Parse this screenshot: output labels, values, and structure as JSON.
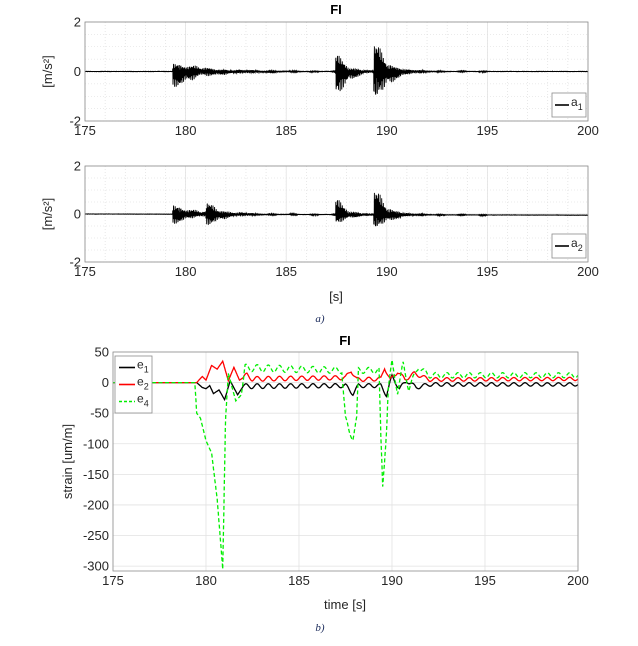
{
  "chart_data": [
    {
      "type": "line",
      "panel": "a",
      "title": "FI",
      "xlabel": "",
      "ylabel": "[m/s²]",
      "xlim": [
        175,
        200
      ],
      "ylim": [
        -2,
        2
      ],
      "xticks": [
        "175",
        "180",
        "185",
        "190",
        "195",
        "200"
      ],
      "yticks": [
        "-2",
        "0",
        "2"
      ],
      "grid": "major+minor",
      "legend_position": "bottom-right",
      "series": [
        {
          "name_base": "a",
          "name_sub": "1",
          "color": "#000000",
          "baseline_end": 0.0,
          "bursts": [
            {
              "t0": 179.35,
              "pos": 0.5,
              "neg": -0.75,
              "tau": 1.4
            },
            {
              "t0": 187.45,
              "pos": 0.9,
              "neg": -1.6,
              "tau": 0.5
            },
            {
              "t0": 189.35,
              "pos": 1.4,
              "neg": -2.0,
              "tau": 0.6
            }
          ]
        },
        {
          "name_base": "a",
          "name_sub": "2",
          "color": "#000000",
          "baseline_end": -0.05,
          "bursts": [
            {
              "t0": 179.35,
              "pos": 0.6,
              "neg": -0.5,
              "tau": 0.9
            },
            {
              "t0": 181.0,
              "pos": 0.55,
              "neg": -0.6,
              "tau": 0.7
            },
            {
              "t0": 187.45,
              "pos": 0.85,
              "neg": -0.6,
              "tau": 0.5
            },
            {
              "t0": 189.35,
              "pos": 1.25,
              "neg": -1.0,
              "tau": 0.6
            }
          ]
        }
      ],
      "shared_xlabel": "[s]",
      "caption": "a)"
    },
    {
      "type": "line",
      "panel": "b",
      "title": "FI",
      "xlabel": "time [s]",
      "ylabel": "strain [um/m]",
      "xlim": [
        175,
        200
      ],
      "ylim": [
        -308,
        50
      ],
      "xticks": [
        "175",
        "180",
        "185",
        "190",
        "195",
        "200"
      ],
      "yticks": [
        "50",
        "0",
        "-50",
        "-100",
        "-150",
        "-200",
        "-250",
        "-300"
      ],
      "grid": "major",
      "legend_position": "top-left",
      "caption": "b)",
      "series": [
        {
          "name_base": "e",
          "name_sub": "1",
          "color": "#000000",
          "dash": false,
          "osc": {
            "start": 182,
            "period": 0.6,
            "amp": 4
          },
          "points": [
            [
              175,
              0
            ],
            [
              179.5,
              0
            ],
            [
              179.8,
              -8
            ],
            [
              180,
              -10
            ],
            [
              180.2,
              -5
            ],
            [
              180.4,
              -18
            ],
            [
              180.7,
              -12
            ],
            [
              181,
              -28
            ],
            [
              181.3,
              3
            ],
            [
              181.7,
              -20
            ],
            [
              182,
              -6
            ],
            [
              187.5,
              -5
            ],
            [
              187.9,
              -18
            ],
            [
              188.2,
              -5
            ],
            [
              189.4,
              -5
            ],
            [
              189.7,
              -20
            ],
            [
              190,
              10
            ],
            [
              190.4,
              -10
            ],
            [
              190.8,
              3
            ],
            [
              191.3,
              -8
            ],
            [
              192,
              -3
            ],
            [
              200,
              -3
            ]
          ]
        },
        {
          "name_base": "e",
          "name_sub": "2",
          "color": "#ff0000",
          "dash": false,
          "osc": {
            "start": 182,
            "period": 0.6,
            "amp": 4
          },
          "points": [
            [
              175,
              0
            ],
            [
              179.5,
              0
            ],
            [
              179.8,
              10
            ],
            [
              180,
              4
            ],
            [
              180.3,
              28
            ],
            [
              180.6,
              22
            ],
            [
              180.9,
              35
            ],
            [
              181.2,
              3
            ],
            [
              181.5,
              25
            ],
            [
              181.8,
              4
            ],
            [
              182.2,
              12
            ],
            [
              182.5,
              6
            ],
            [
              187.5,
              8
            ],
            [
              187.8,
              20
            ],
            [
              188.1,
              5
            ],
            [
              189.4,
              6
            ],
            [
              189.6,
              25
            ],
            [
              189.9,
              4
            ],
            [
              190.3,
              18
            ],
            [
              190.7,
              5
            ],
            [
              191.2,
              15
            ],
            [
              192,
              5
            ],
            [
              200,
              6
            ]
          ]
        },
        {
          "name_base": "e",
          "name_sub": "4",
          "color": "#00ee00",
          "dash": true,
          "osc": {
            "start": 182,
            "period": 0.6,
            "amp": 6
          },
          "points": [
            [
              175,
              0
            ],
            [
              179.4,
              0
            ],
            [
              179.5,
              -50
            ],
            [
              179.7,
              -58
            ],
            [
              180,
              -95
            ],
            [
              180.3,
              -115
            ],
            [
              180.6,
              -190
            ],
            [
              180.9,
              -305
            ],
            [
              181.05,
              -60
            ],
            [
              181.2,
              15
            ],
            [
              181.6,
              -30
            ],
            [
              181.9,
              -20
            ],
            [
              182.1,
              24
            ],
            [
              187.3,
              20
            ],
            [
              187.5,
              -60
            ],
            [
              187.7,
              -80
            ],
            [
              187.9,
              -90
            ],
            [
              188.1,
              -60
            ],
            [
              188.2,
              20
            ],
            [
              189.3,
              20
            ],
            [
              189.4,
              -90
            ],
            [
              189.5,
              -170
            ],
            [
              189.7,
              -80
            ],
            [
              189.8,
              -10
            ],
            [
              190,
              33
            ],
            [
              190.3,
              -15
            ],
            [
              190.6,
              30
            ],
            [
              190.9,
              -10
            ],
            [
              191.4,
              25
            ],
            [
              192,
              12
            ],
            [
              200,
              12
            ]
          ]
        }
      ]
    }
  ]
}
